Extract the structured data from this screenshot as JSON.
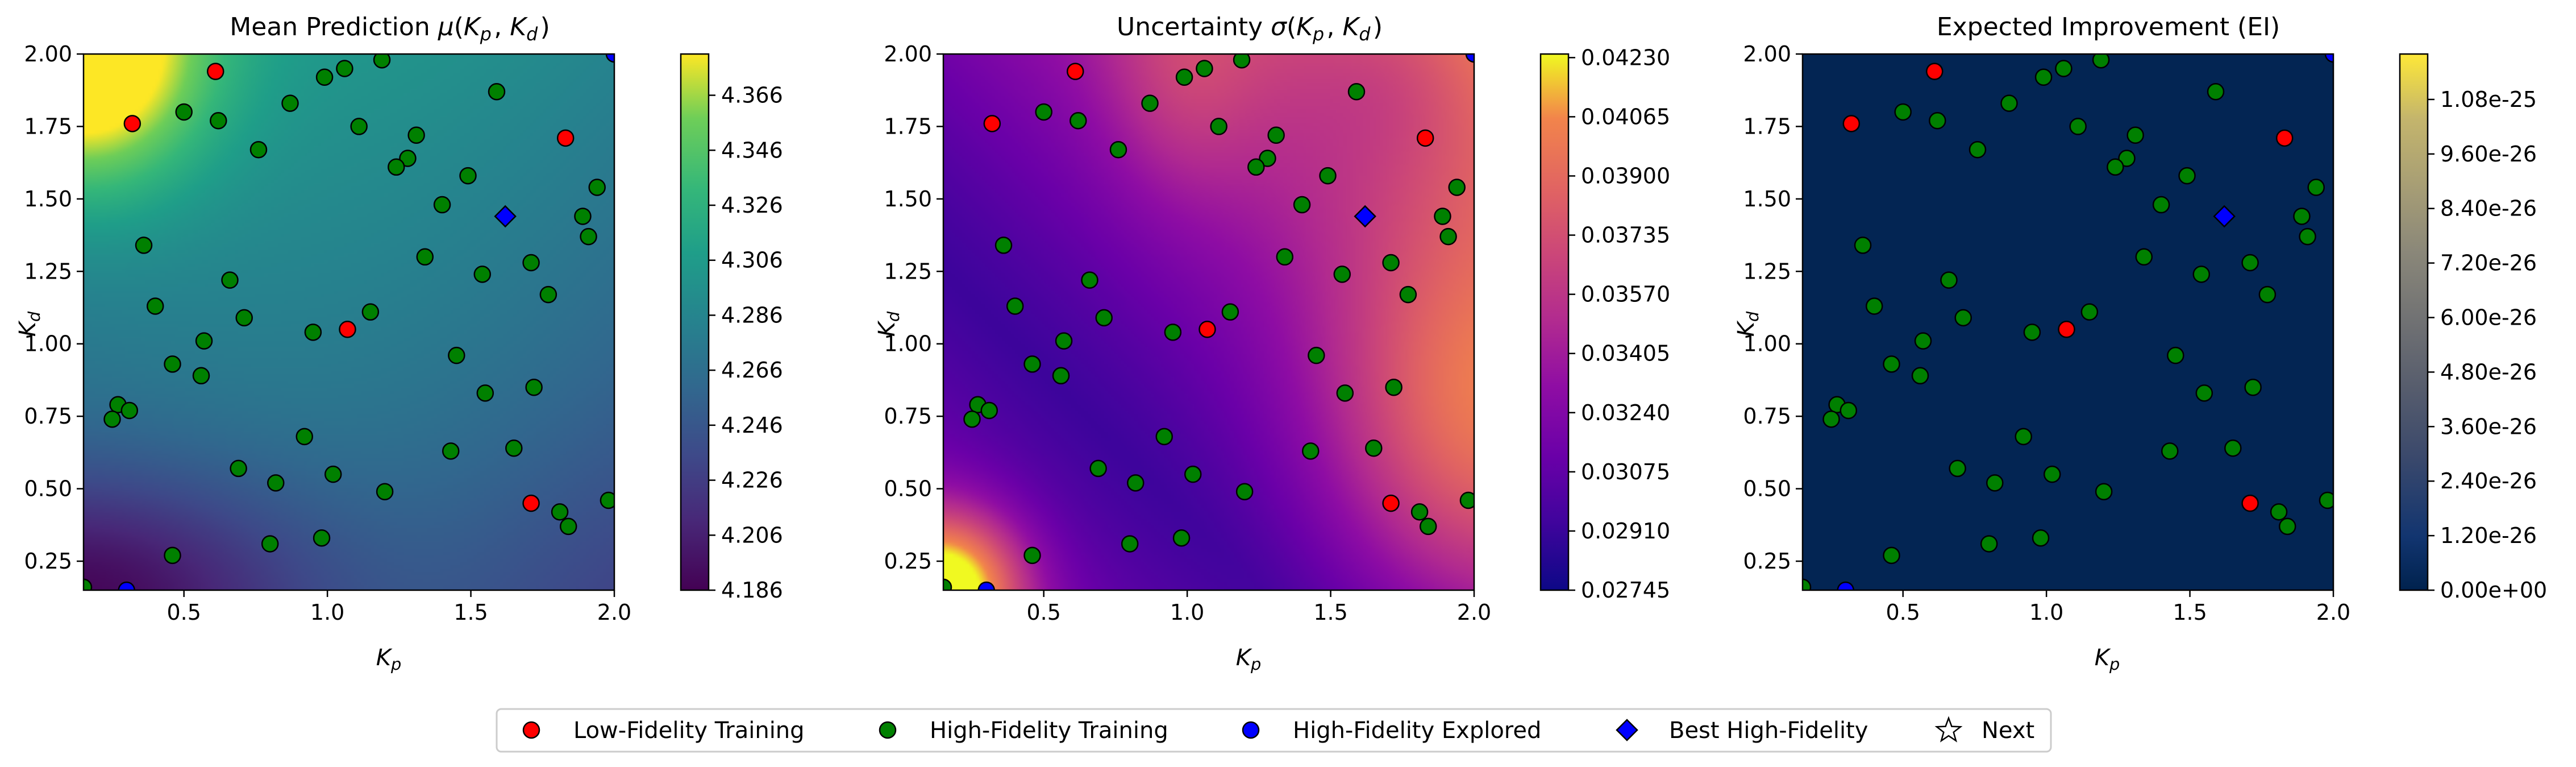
{
  "chart_data": [
    {
      "type": "heatmap",
      "title": "Mean Prediction μ(K_p, K_d)",
      "xlabel": "K_p",
      "ylabel": "K_d",
      "xlim": [
        0.15,
        2.0
      ],
      "ylim": [
        0.15,
        2.0
      ],
      "xticks": [
        0.5,
        1.0,
        1.5,
        2.0
      ],
      "xtick_labels": [
        "0.5",
        "1.0",
        "1.5",
        "2.0"
      ],
      "yticks": [
        0.25,
        0.5,
        0.75,
        1.0,
        1.25,
        1.5,
        1.75,
        2.0
      ],
      "ytick_labels": [
        "0.25",
        "0.50",
        "0.75",
        "1.00",
        "1.25",
        "1.50",
        "1.75",
        "2.00"
      ],
      "colormap": "viridis",
      "colorbar": {
        "min": 4.186,
        "max": 4.381,
        "ticks": [
          4.186,
          4.206,
          4.226,
          4.246,
          4.266,
          4.286,
          4.306,
          4.326,
          4.346,
          4.366
        ],
        "tick_labels": [
          "4.186",
          "4.206",
          "4.226",
          "4.246",
          "4.266",
          "4.286",
          "4.306",
          "4.326",
          "4.346",
          "4.366"
        ]
      }
    },
    {
      "type": "heatmap",
      "title": "Uncertainty σ(K_p, K_d)",
      "xlabel": "K_p",
      "ylabel": "K_d",
      "xlim": [
        0.15,
        2.0
      ],
      "ylim": [
        0.15,
        2.0
      ],
      "xticks": [
        0.5,
        1.0,
        1.5,
        2.0
      ],
      "xtick_labels": [
        "0.5",
        "1.0",
        "1.5",
        "2.0"
      ],
      "yticks": [
        0.25,
        0.5,
        0.75,
        1.0,
        1.25,
        1.5,
        1.75,
        2.0
      ],
      "ytick_labels": [
        "0.25",
        "0.50",
        "0.75",
        "1.00",
        "1.25",
        "1.50",
        "1.75",
        "2.00"
      ],
      "colormap": "plasma",
      "colorbar": {
        "min": 0.02745,
        "max": 0.0424,
        "ticks": [
          0.02745,
          0.0291,
          0.03075,
          0.0324,
          0.03405,
          0.0357,
          0.03735,
          0.039,
          0.04065,
          0.0423
        ],
        "tick_labels": [
          "0.02745",
          "0.02910",
          "0.03075",
          "0.03240",
          "0.03405",
          "0.03570",
          "0.03735",
          "0.03900",
          "0.04065",
          "0.04230"
        ]
      }
    },
    {
      "type": "heatmap",
      "title": "Expected Improvement (EI)",
      "xlabel": "K_p",
      "ylabel": "K_d",
      "xlim": [
        0.15,
        2.0
      ],
      "ylim": [
        0.15,
        2.0
      ],
      "xticks": [
        0.5,
        1.0,
        1.5,
        2.0
      ],
      "xtick_labels": [
        "0.5",
        "1.0",
        "1.5",
        "2.0"
      ],
      "yticks": [
        0.25,
        0.5,
        0.75,
        1.0,
        1.25,
        1.5,
        1.75,
        2.0
      ],
      "ytick_labels": [
        "0.25",
        "0.50",
        "0.75",
        "1.00",
        "1.25",
        "1.50",
        "1.75",
        "2.00"
      ],
      "colormap": "cividis",
      "colorbar": {
        "min": 0,
        "max": 1.18e-25,
        "ticks": [
          0,
          1.2e-26,
          2.4e-26,
          3.6e-26,
          4.8e-26,
          6e-26,
          7.2e-26,
          8.4e-26,
          9.6e-26,
          1.08e-25
        ],
        "tick_labels": [
          "0.00e+00",
          "1.20e-26",
          "2.40e-26",
          "3.60e-26",
          "4.80e-26",
          "6.00e-26",
          "7.20e-26",
          "8.40e-26",
          "9.60e-26",
          "1.08e-25"
        ]
      }
    }
  ],
  "points": {
    "low_fidelity": [
      [
        0.61,
        1.94
      ],
      [
        0.32,
        1.76
      ],
      [
        1.83,
        1.71
      ],
      [
        1.07,
        1.05
      ],
      [
        1.71,
        0.45
      ]
    ],
    "high_fidelity_training": [
      [
        0.62,
        1.77
      ],
      [
        0.5,
        1.8
      ],
      [
        0.87,
        1.83
      ],
      [
        0.99,
        1.92
      ],
      [
        1.06,
        1.95
      ],
      [
        1.19,
        1.98
      ],
      [
        1.59,
        1.87
      ],
      [
        0.76,
        1.67
      ],
      [
        1.11,
        1.75
      ],
      [
        1.31,
        1.72
      ],
      [
        1.28,
        1.64
      ],
      [
        1.24,
        1.61
      ],
      [
        1.49,
        1.58
      ],
      [
        1.94,
        1.54
      ],
      [
        1.4,
        1.48
      ],
      [
        1.89,
        1.44
      ],
      [
        1.91,
        1.37
      ],
      [
        0.36,
        1.34
      ],
      [
        1.34,
        1.3
      ],
      [
        0.66,
        1.22
      ],
      [
        1.54,
        1.24
      ],
      [
        1.71,
        1.28
      ],
      [
        1.77,
        1.17
      ],
      [
        0.4,
        1.13
      ],
      [
        1.15,
        1.11
      ],
      [
        0.71,
        1.09
      ],
      [
        0.95,
        1.04
      ],
      [
        0.57,
        1.01
      ],
      [
        1.45,
        0.96
      ],
      [
        0.46,
        0.93
      ],
      [
        0.56,
        0.89
      ],
      [
        1.72,
        0.85
      ],
      [
        1.55,
        0.83
      ],
      [
        0.27,
        0.79
      ],
      [
        0.31,
        0.77
      ],
      [
        0.25,
        0.74
      ],
      [
        0.92,
        0.68
      ],
      [
        1.65,
        0.64
      ],
      [
        1.43,
        0.63
      ],
      [
        0.69,
        0.57
      ],
      [
        1.02,
        0.55
      ],
      [
        0.82,
        0.52
      ],
      [
        1.2,
        0.49
      ],
      [
        1.98,
        0.46
      ],
      [
        1.81,
        0.42
      ],
      [
        1.84,
        0.37
      ],
      [
        0.98,
        0.33
      ],
      [
        0.8,
        0.31
      ],
      [
        0.46,
        0.27
      ],
      [
        0.15,
        0.16
      ]
    ],
    "high_fidelity_explored": [
      [
        0.3,
        0.15
      ],
      [
        2.0,
        2.0
      ]
    ],
    "best_high_fidelity": [
      1.62,
      1.44
    ]
  },
  "legend": {
    "items": [
      {
        "label": "Low-Fidelity Training",
        "color": "#ff0000",
        "marker": "circle"
      },
      {
        "label": "High-Fidelity Training",
        "color": "#008000",
        "marker": "circle"
      },
      {
        "label": "High-Fidelity Explored",
        "color": "#0000ff",
        "marker": "circle"
      },
      {
        "label": "Best High-Fidelity",
        "color": "#0000ff",
        "marker": "diamond"
      },
      {
        "label": "Next",
        "color": "#ffffff",
        "marker": "star"
      }
    ]
  }
}
